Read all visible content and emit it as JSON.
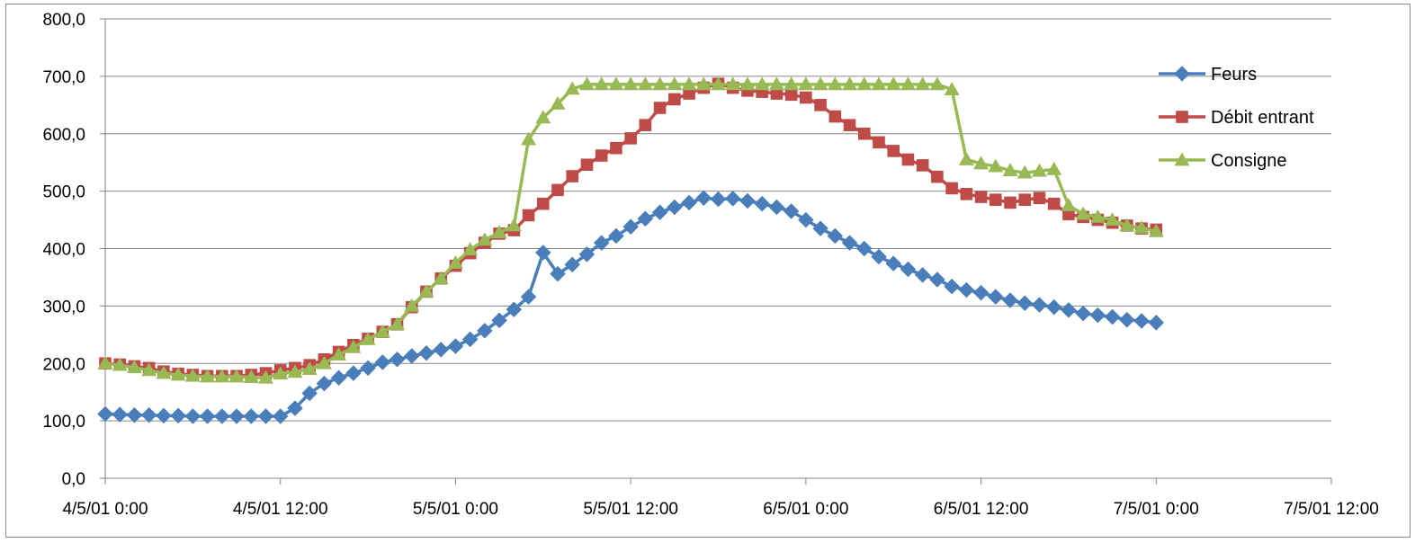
{
  "chart_data": {
    "type": "line",
    "title": "",
    "xlabel": "",
    "ylabel": "",
    "ylim": [
      0,
      800
    ],
    "yticks": [
      0,
      100,
      200,
      300,
      400,
      500,
      600,
      700,
      800
    ],
    "ytick_labels": [
      "0,0",
      "100,0",
      "200,0",
      "300,0",
      "400,0",
      "500,0",
      "600,0",
      "700,0",
      "800,0"
    ],
    "x_unit": "hours since 4/5/01 0:00",
    "xlim": [
      0,
      84
    ],
    "xticks": [
      0,
      12,
      24,
      36,
      48,
      60,
      72,
      84
    ],
    "xtick_labels": [
      "4/5/01 0:00",
      "4/5/01 12:00",
      "5/5/01 0:00",
      "5/5/01 12:00",
      "6/5/01 0:00",
      "6/5/01 12:00",
      "7/5/01 0:00",
      "7/5/01 12:00"
    ],
    "grid": "horizontal",
    "legend_position": "right",
    "x": [
      0,
      1,
      2,
      3,
      4,
      5,
      6,
      7,
      8,
      9,
      10,
      11,
      12,
      13,
      14,
      15,
      16,
      17,
      18,
      19,
      20,
      21,
      22,
      23,
      24,
      25,
      26,
      27,
      28,
      29,
      30,
      31,
      32,
      33,
      34,
      35,
      36,
      37,
      38,
      39,
      40,
      41,
      42,
      43,
      44,
      45,
      46,
      47,
      48,
      49,
      50,
      51,
      52,
      53,
      54,
      55,
      56,
      57,
      58,
      59,
      60,
      61,
      62,
      63,
      64,
      65,
      66,
      67,
      68,
      69,
      70,
      71,
      72
    ],
    "series": [
      {
        "name": "Feurs",
        "color": "#4a7ebb",
        "marker": "diamond",
        "values": [
          112,
          111,
          110,
          110,
          109,
          109,
          108,
          108,
          108,
          108,
          108,
          108,
          108,
          122,
          148,
          165,
          175,
          183,
          192,
          202,
          207,
          213,
          218,
          224,
          230,
          242,
          257,
          275,
          294,
          316,
          393,
          356,
          372,
          390,
          410,
          422,
          438,
          452,
          463,
          472,
          480,
          488,
          486,
          487,
          483,
          478,
          472,
          465,
          450,
          435,
          422,
          410,
          400,
          386,
          374,
          364,
          354,
          346,
          334,
          328,
          323,
          316,
          310,
          305,
          302,
          298,
          293,
          287,
          284,
          281,
          276,
          274,
          271
        ]
      },
      {
        "name": "Débit entrant",
        "color": "#be4b48",
        "marker": "square",
        "values": [
          200,
          198,
          195,
          192,
          186,
          182,
          180,
          178,
          178,
          178,
          180,
          183,
          188,
          192,
          197,
          207,
          220,
          232,
          243,
          255,
          268,
          298,
          325,
          348,
          370,
          392,
          410,
          426,
          432,
          458,
          478,
          502,
          526,
          546,
          562,
          575,
          592,
          615,
          645,
          660,
          670,
          680,
          687,
          680,
          675,
          673,
          670,
          668,
          663,
          650,
          630,
          615,
          600,
          585,
          570,
          555,
          545,
          525,
          505,
          495,
          490,
          485,
          480,
          485,
          488,
          478,
          460,
          455,
          450,
          445,
          440,
          435,
          433
        ]
      },
      {
        "name": "Consigne",
        "color": "#98b954",
        "marker": "triangle",
        "values": [
          200,
          197,
          193,
          188,
          183,
          180,
          178,
          177,
          177,
          177,
          176,
          175,
          182,
          185,
          190,
          200,
          215,
          228,
          242,
          255,
          268,
          300,
          325,
          348,
          375,
          398,
          415,
          428,
          440,
          590,
          628,
          652,
          678,
          686,
          686,
          686,
          686,
          686,
          686,
          686,
          686,
          686,
          686,
          686,
          686,
          686,
          686,
          686,
          686,
          686,
          686,
          686,
          686,
          686,
          686,
          686,
          686,
          686,
          677,
          555,
          548,
          543,
          536,
          532,
          535,
          538,
          475,
          460,
          455,
          450,
          440,
          436,
          430
        ]
      }
    ]
  }
}
